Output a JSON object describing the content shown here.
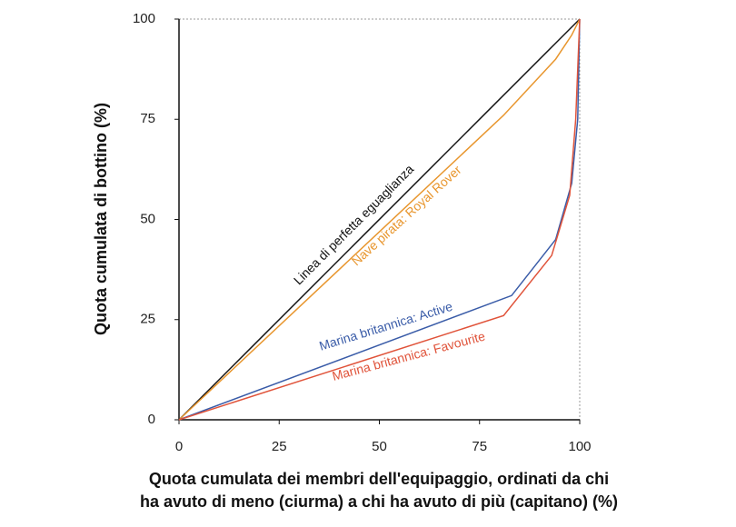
{
  "chart_data": {
    "type": "line",
    "y_label": "Quota cumulata di bottino (%)",
    "x_label": [
      "Quota cumulata dei membri dell'equipaggio, ordinati da chi",
      "ha avuto di meno (ciurma) a chi ha avuto di più (capitano) (%)"
    ],
    "xlim": [
      0,
      100
    ],
    "ylim": [
      0,
      100
    ],
    "xticks": [
      0,
      25,
      50,
      75,
      100
    ],
    "yticks": [
      0,
      25,
      50,
      75,
      100
    ],
    "grid": false,
    "series": [
      {
        "name": "Linea di perfetta eguaglianza",
        "color": "#111111",
        "x": [
          0,
          100
        ],
        "values": [
          0,
          100
        ]
      },
      {
        "name": "Nave pirata: Royal Rover",
        "color": "#e8962e",
        "x": [
          0,
          81,
          94,
          98,
          100
        ],
        "values": [
          0,
          76,
          90,
          96,
          100
        ]
      },
      {
        "name": "Marina britannica: Active",
        "color": "#3a5ca8",
        "x": [
          0,
          83,
          94,
          98,
          99.5,
          100
        ],
        "values": [
          0,
          31,
          45,
          59,
          75,
          100
        ]
      },
      {
        "name": "Marina britannica: Favourite",
        "color": "#e0533a",
        "x": [
          0,
          81,
          93,
          97.5,
          99,
          100
        ],
        "values": [
          0,
          26,
          41,
          56,
          75,
          100
        ]
      }
    ]
  }
}
